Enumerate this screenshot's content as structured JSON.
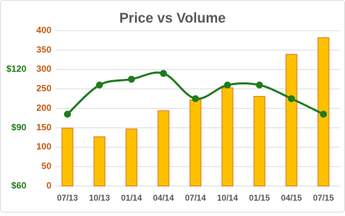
{
  "chart_data": {
    "type": "bar-line",
    "title": "Price vs Volume",
    "categories": [
      "07/13",
      "10/13",
      "01/14",
      "04/14",
      "07/14",
      "10/14",
      "01/15",
      "04/15",
      "07/15"
    ],
    "series": [
      {
        "type": "bar",
        "color": "#ffc000",
        "values": [
          149,
          127,
          147,
          194,
          222,
          253,
          231,
          339,
          382
        ]
      },
      {
        "type": "line",
        "color": "#1e7b1e",
        "axis": "y2",
        "values": [
          97,
          112,
          115,
          118,
          105,
          112,
          112,
          105,
          97
        ]
      }
    ],
    "ylim": [
      0,
      400
    ],
    "yticks": [
      0,
      50,
      100,
      150,
      200,
      250,
      300,
      350,
      400
    ],
    "y2lim": [
      60,
      140
    ],
    "y2ticks": [
      {
        "value": 60,
        "label": "$60"
      },
      {
        "value": 90,
        "label": "$90"
      },
      {
        "value": 120,
        "label": "$120"
      }
    ],
    "grid": true
  }
}
